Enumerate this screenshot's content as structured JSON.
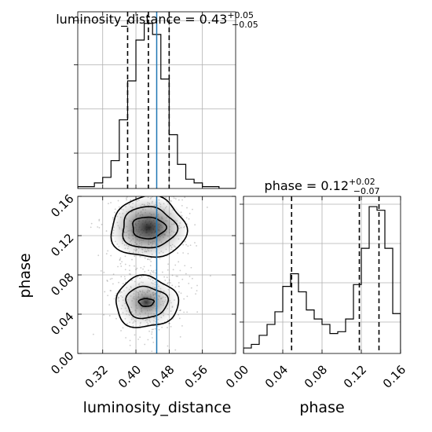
{
  "chart_data": [
    {
      "type": "histogram",
      "panel": "top-left",
      "parameter": "luminosity_distance",
      "title": {
        "main": "luminosity_distance = 0.43",
        "plus": "+0.05",
        "minus": "−0.05"
      },
      "xlim": [
        0.26,
        0.64
      ],
      "bins": [
        0.26,
        0.28,
        0.3,
        0.32,
        0.34,
        0.36,
        0.38,
        0.4,
        0.42,
        0.44,
        0.46,
        0.48,
        0.5,
        0.52,
        0.54,
        0.56,
        0.58,
        0.6,
        0.62,
        0.64
      ],
      "counts": [
        1,
        1,
        3,
        6,
        15,
        37,
        58,
        80,
        89,
        83,
        59,
        29,
        13,
        5,
        3,
        1,
        1,
        0,
        0
      ],
      "quantiles": [
        0.38,
        0.43,
        0.48
      ],
      "truth": 0.45,
      "grid": true,
      "show_y_ticks": false
    },
    {
      "type": "contour-2d",
      "panel": "bottom-left",
      "xlabel": "luminosity_distance",
      "ylabel": "phase",
      "xlim": [
        0.26,
        0.64
      ],
      "ylim": [
        0.0,
        0.16
      ],
      "xticks": [
        "0.32",
        "0.40",
        "0.48",
        "0.56"
      ],
      "yticks": [
        "0.00",
        "0.04",
        "0.08",
        "0.12",
        "0.16"
      ],
      "truth_x": 0.45,
      "modes": [
        {
          "center_x": 0.43,
          "center_y": 0.128,
          "contour_levels": [
            {
              "rx": 0.09,
              "ry": 0.031
            },
            {
              "rx": 0.065,
              "ry": 0.021
            },
            {
              "rx": 0.04,
              "ry": 0.011
            }
          ]
        },
        {
          "center_x": 0.425,
          "center_y": 0.052,
          "contour_levels": [
            {
              "rx": 0.075,
              "ry": 0.026
            },
            {
              "rx": 0.05,
              "ry": 0.016
            },
            {
              "rx": 0.018,
              "ry": 0.004
            }
          ]
        }
      ],
      "grid": true
    },
    {
      "type": "histogram",
      "panel": "bottom-right",
      "parameter": "phase",
      "title": {
        "main": "phase = 0.12",
        "plus": "+0.02",
        "minus": "−0.07"
      },
      "xlabel": "phase",
      "xlim": [
        0.0,
        0.16
      ],
      "xticks": [
        "0.00",
        "0.04",
        "0.08",
        "0.12",
        "0.16"
      ],
      "bins": [
        0.0,
        0.008,
        0.016,
        0.024,
        0.032,
        0.04,
        0.048,
        0.056,
        0.064,
        0.072,
        0.08,
        0.088,
        0.096,
        0.104,
        0.112,
        0.12,
        0.128,
        0.136,
        0.144,
        0.152,
        0.16
      ],
      "counts": [
        3,
        5,
        10,
        16,
        23,
        37,
        44,
        34,
        24,
        19,
        16,
        11,
        12,
        19,
        38,
        58,
        81,
        79,
        58,
        22
      ],
      "quantiles": [
        0.049,
        0.118,
        0.138
      ],
      "grid": true,
      "show_y_ticks": false
    }
  ]
}
